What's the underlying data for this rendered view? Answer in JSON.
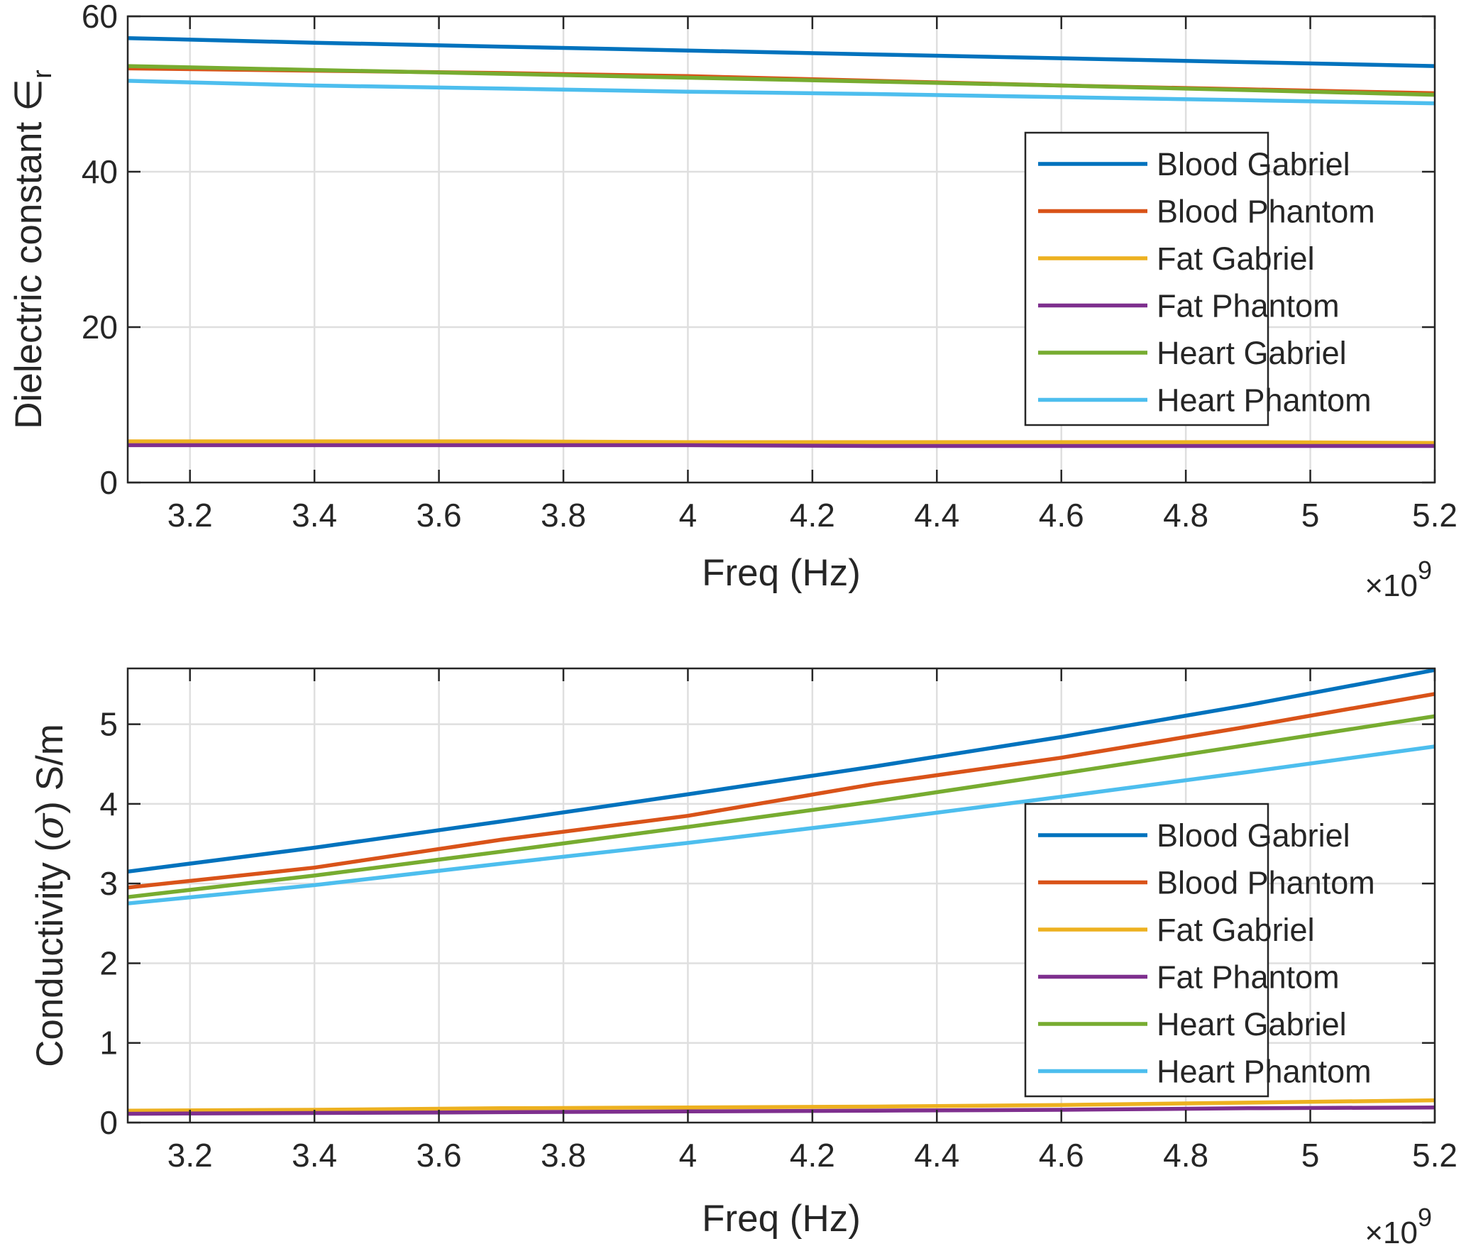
{
  "chart_data": [
    {
      "type": "line",
      "title": "",
      "xlabel": "Freq (Hz)",
      "x_exponent_base": "×10",
      "x_exponent": "9",
      "ylabel_prefix": "Dielectric constant",
      "ylabel_symbol": "∈",
      "ylabel_subscript": "r",
      "xlim": [
        3.1,
        5.2
      ],
      "ylim": [
        0,
        60
      ],
      "xticks": [
        3.2,
        3.4,
        3.6,
        3.8,
        4,
        4.2,
        4.4,
        4.6,
        4.8,
        5,
        5.2
      ],
      "xtick_labels": [
        "3.2",
        "3.4",
        "3.6",
        "3.8",
        "4",
        "4.2",
        "4.4",
        "4.6",
        "4.8",
        "5",
        "5.2"
      ],
      "yticks": [
        0,
        20,
        40,
        60
      ],
      "ytick_labels": [
        "0",
        "20",
        "40",
        "60"
      ],
      "grid": true,
      "legend_position": "right",
      "x": [
        3.1,
        3.4,
        3.7,
        4.0,
        4.3,
        4.6,
        4.9,
        5.2
      ],
      "series": [
        {
          "name": "Blood Gabriel",
          "color": "#0072BD",
          "values": [
            57.2,
            56.6,
            56.1,
            55.6,
            55.1,
            54.6,
            54.1,
            53.6
          ]
        },
        {
          "name": "Blood Phantom",
          "color": "#D95319",
          "values": [
            53.3,
            53.0,
            52.7,
            52.3,
            51.7,
            51.1,
            50.6,
            50.1
          ]
        },
        {
          "name": "Fat Gabriel",
          "color": "#EDB120",
          "values": [
            5.3,
            5.3,
            5.3,
            5.2,
            5.2,
            5.2,
            5.2,
            5.1
          ]
        },
        {
          "name": "Fat Phantom",
          "color": "#7E2F8E",
          "values": [
            4.8,
            4.8,
            4.8,
            4.8,
            4.7,
            4.7,
            4.7,
            4.7
          ]
        },
        {
          "name": "Heart Gabriel",
          "color": "#77AC30",
          "values": [
            53.6,
            53.1,
            52.6,
            52.1,
            51.6,
            51.1,
            50.5,
            49.9
          ]
        },
        {
          "name": "Heart Phantom",
          "color": "#4DBEEE",
          "values": [
            51.7,
            51.1,
            50.7,
            50.3,
            50.0,
            49.6,
            49.2,
            48.8
          ]
        }
      ]
    },
    {
      "type": "line",
      "title": "",
      "xlabel": "Freq (Hz)",
      "x_exponent_base": "×10",
      "x_exponent": "9",
      "ylabel_prefix": "Conductivity (",
      "ylabel_symbol": "σ",
      "ylabel_suffix": ") S/m",
      "xlim": [
        3.1,
        5.2
      ],
      "ylim": [
        0,
        5.7
      ],
      "xticks": [
        3.2,
        3.4,
        3.6,
        3.8,
        4,
        4.2,
        4.4,
        4.6,
        4.8,
        5,
        5.2
      ],
      "xtick_labels": [
        "3.2",
        "3.4",
        "3.6",
        "3.8",
        "4",
        "4.2",
        "4.4",
        "4.6",
        "4.8",
        "5",
        "5.2"
      ],
      "yticks": [
        0,
        1,
        2,
        3,
        4,
        5
      ],
      "ytick_labels": [
        "0",
        "1",
        "2",
        "3",
        "4",
        "5"
      ],
      "grid": true,
      "legend_position": "right",
      "x": [
        3.1,
        3.4,
        3.7,
        4.0,
        4.3,
        4.6,
        4.9,
        5.2
      ],
      "series": [
        {
          "name": "Blood Gabriel",
          "color": "#0072BD",
          "values": [
            3.15,
            3.45,
            3.78,
            4.12,
            4.47,
            4.84,
            5.24,
            5.68
          ]
        },
        {
          "name": "Blood Phantom",
          "color": "#D95319",
          "values": [
            2.95,
            3.2,
            3.55,
            3.85,
            4.25,
            4.58,
            4.97,
            5.38
          ]
        },
        {
          "name": "Fat Gabriel",
          "color": "#EDB120",
          "values": [
            0.15,
            0.16,
            0.18,
            0.19,
            0.2,
            0.22,
            0.25,
            0.28
          ]
        },
        {
          "name": "Fat Phantom",
          "color": "#7E2F8E",
          "values": [
            0.11,
            0.12,
            0.13,
            0.14,
            0.15,
            0.16,
            0.18,
            0.19
          ]
        },
        {
          "name": "Heart Gabriel",
          "color": "#77AC30",
          "values": [
            2.83,
            3.1,
            3.4,
            3.71,
            4.03,
            4.38,
            4.74,
            5.1
          ]
        },
        {
          "name": "Heart Phantom",
          "color": "#4DBEEE",
          "values": [
            2.75,
            2.98,
            3.25,
            3.51,
            3.79,
            4.09,
            4.4,
            4.72
          ]
        }
      ]
    }
  ]
}
